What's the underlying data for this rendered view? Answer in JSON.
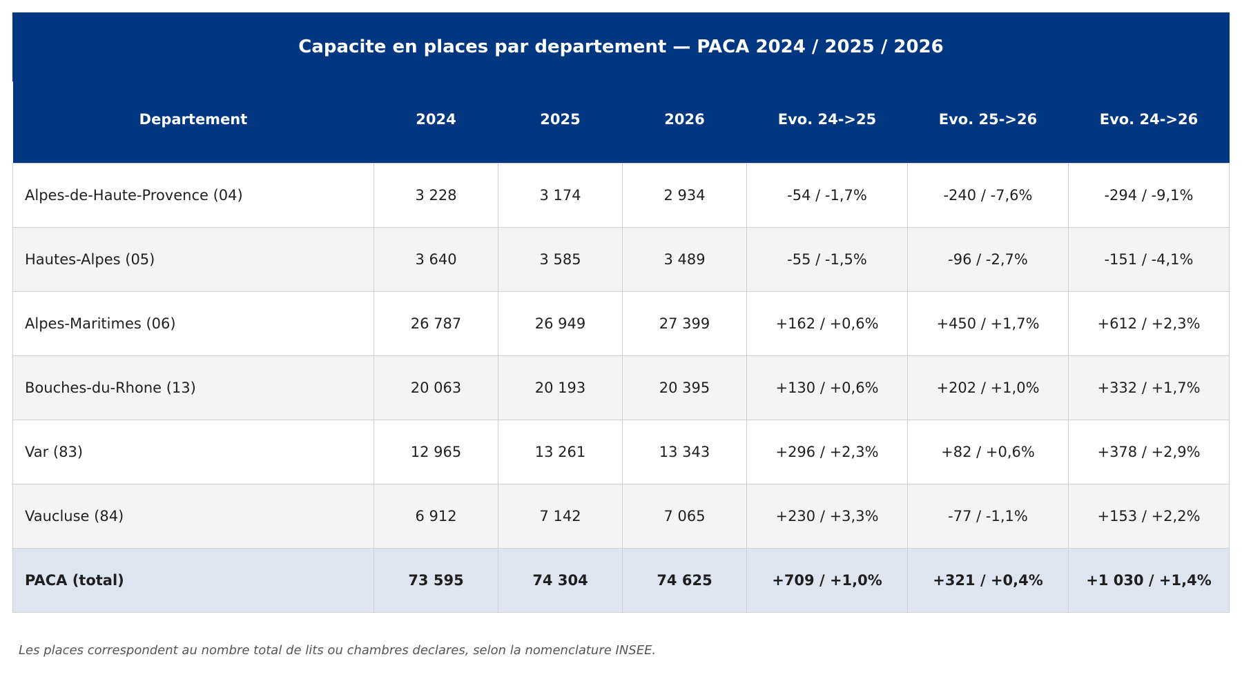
{
  "chart_data": {
    "type": "table",
    "title": "Capacite en places par departement — PACA 2024 / 2025 / 2026",
    "columns": [
      "Departement",
      "2024",
      "2025",
      "2026",
      "Evo. 24->25",
      "Evo. 25->26",
      "Evo. 24->26"
    ],
    "rows": [
      {
        "cells": [
          "Alpes-de-Haute-Provence (04)",
          "3 228",
          "3 174",
          "2 934",
          "-54 / -1,7%",
          "-240 / -7,6%",
          "-294 / -9,1%"
        ]
      },
      {
        "cells": [
          "Hautes-Alpes (05)",
          "3 640",
          "3 585",
          "3 489",
          "-55 / -1,5%",
          "-96 / -2,7%",
          "-151 / -4,1%"
        ]
      },
      {
        "cells": [
          "Alpes-Maritimes (06)",
          "26 787",
          "26 949",
          "27 399",
          "+162 / +0,6%",
          "+450 / +1,7%",
          "+612 / +2,3%"
        ]
      },
      {
        "cells": [
          "Bouches-du-Rhone (13)",
          "20 063",
          "20 193",
          "20 395",
          "+130 / +0,6%",
          "+202 / +1,0%",
          "+332 / +1,7%"
        ]
      },
      {
        "cells": [
          "Var (83)",
          "12 965",
          "13 261",
          "13 343",
          "+296 / +2,3%",
          "+82 / +0,6%",
          "+378 / +2,9%"
        ]
      },
      {
        "cells": [
          "Vaucluse (84)",
          "6 912",
          "7 142",
          "7 065",
          "+230 / +3,3%",
          "-77 / -1,1%",
          "+153 / +2,2%"
        ]
      }
    ],
    "total": {
      "cells": [
        "PACA (total)",
        "73 595",
        "74 304",
        "74 625",
        "+709 / +1,0%",
        "+321 / +0,4%",
        "+1 030 / +1,4%"
      ]
    },
    "footnote": "Les places correspondent au nombre total de lits ou chambres declares, selon la nomenclature INSEE.",
    "colors": {
      "header": "#003780",
      "row_alt": "#f4f4f4",
      "total_row": "#dde6f0"
    }
  }
}
